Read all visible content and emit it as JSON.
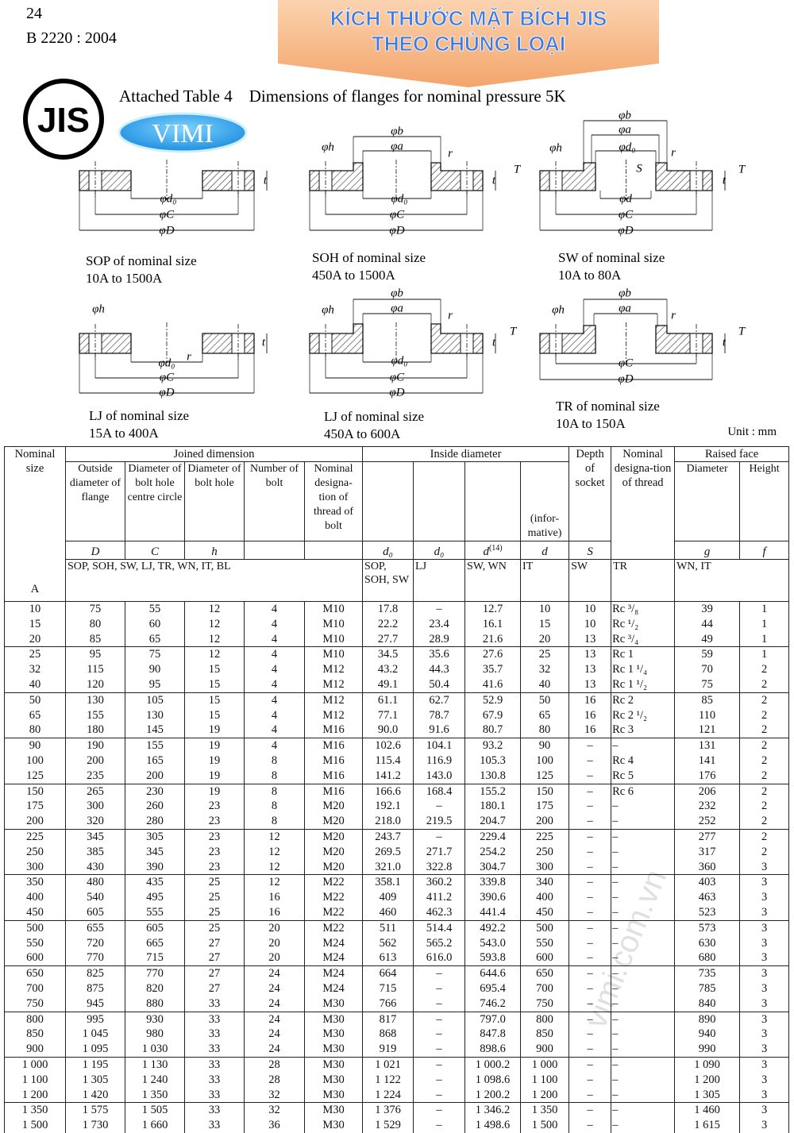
{
  "header": {
    "page_number": "24",
    "standard": "B 2220 : 2004",
    "banner": [
      "KÍCH THƯỚC MẶT BÍCH JIS",
      "THEO CHỦNG LOẠI"
    ],
    "logo": "JIS",
    "brand": "VIMI",
    "caption": "Attached Table 4    Dimensions of flanges for nominal pressure 5K"
  },
  "diagrams": [
    {
      "caption": [
        "SOP of nominal size",
        "10A to 1500A"
      ],
      "labels": [
        "φd₀",
        "φC",
        "φD",
        "t"
      ]
    },
    {
      "caption": [
        "SOH of nominal size",
        "450A to 1500A"
      ],
      "labels": [
        "φb",
        "φa",
        "φh",
        "r",
        "t",
        "T",
        "φd₀",
        "φC",
        "φD"
      ]
    },
    {
      "caption": [
        "SW of nominal size",
        "10A to 80A"
      ],
      "labels": [
        "φb",
        "φa",
        "φd₀",
        "φh",
        "r",
        "S",
        "t",
        "T",
        "φd",
        "φC",
        "φD"
      ]
    },
    {
      "caption": [
        "LJ of nominal size",
        "15A to 400A"
      ],
      "labels": [
        "φh",
        "t",
        "φd₀",
        "r",
        "φC",
        "φD"
      ]
    },
    {
      "caption": [
        "LJ of nominal size",
        "450A to 600A"
      ],
      "labels": [
        "φb",
        "φa",
        "φh",
        "r",
        "t",
        "T",
        "φd₀",
        "φC",
        "φD"
      ]
    },
    {
      "caption": [
        "TR of nominal size",
        "10A to 150A"
      ],
      "labels": [
        "φb",
        "φa",
        "φh",
        "r",
        "t",
        "T",
        "φC",
        "φD"
      ]
    }
  ],
  "unit": "Unit : mm",
  "watermark": "vimi.com.vn",
  "table": {
    "header": {
      "nominal_size": "Nominal size",
      "unit_symbol": "A",
      "joined_dimension": "Joined dimension",
      "inside_diameter": "Inside diameter",
      "depth_of_socket": "Depth of socket",
      "nominal_designation_of_thread": "Nominal designa-tion of thread",
      "raised_face": "Raised face",
      "columns": [
        "Outside diameter of flange",
        "Diameter of bolt hole centre circle",
        "Diameter of bolt hole",
        "Number of bolt",
        "Nominal designa-tion of thread of bolt",
        "(infor-mative)",
        "Diameter",
        "Height"
      ],
      "symbols": [
        "D",
        "C",
        "h",
        "d₀",
        "d₀",
        "d",
        "d",
        "S",
        "g",
        "f"
      ],
      "symbol_note": "(14)",
      "applicability": [
        "SOP, SOH, SW, LJ, TR, WN, IT, BL",
        "SOP, SOH, SW",
        "LJ",
        "SW, WN",
        "IT",
        "SW",
        "TR",
        "WN, IT"
      ]
    },
    "rows": [
      [
        "10",
        "75",
        "55",
        "12",
        "4",
        "M10",
        "17.8",
        "–",
        "12.7",
        "10",
        "10",
        "Rc ³/₈",
        "39",
        "1"
      ],
      [
        "15",
        "80",
        "60",
        "12",
        "4",
        "M10",
        "22.2",
        "23.4",
        "16.1",
        "15",
        "10",
        "Rc ¹/₂",
        "44",
        "1"
      ],
      [
        "20",
        "85",
        "65",
        "12",
        "4",
        "M10",
        "27.7",
        "28.9",
        "21.6",
        "20",
        "13",
        "Rc ³/₄",
        "49",
        "1"
      ],
      [
        "25",
        "95",
        "75",
        "12",
        "4",
        "M10",
        "34.5",
        "35.6",
        "27.6",
        "25",
        "13",
        "Rc 1",
        "59",
        "1"
      ],
      [
        "32",
        "115",
        "90",
        "15",
        "4",
        "M12",
        "43.2",
        "44.3",
        "35.7",
        "32",
        "13",
        "Rc 1 ¹/₄",
        "70",
        "2"
      ],
      [
        "40",
        "120",
        "95",
        "15",
        "4",
        "M12",
        "49.1",
        "50.4",
        "41.6",
        "40",
        "13",
        "Rc 1 ¹/₂",
        "75",
        "2"
      ],
      [
        "50",
        "130",
        "105",
        "15",
        "4",
        "M12",
        "61.1",
        "62.7",
        "52.9",
        "50",
        "16",
        "Rc 2",
        "85",
        "2"
      ],
      [
        "65",
        "155",
        "130",
        "15",
        "4",
        "M12",
        "77.1",
        "78.7",
        "67.9",
        "65",
        "16",
        "Rc 2 ¹/₂",
        "110",
        "2"
      ],
      [
        "80",
        "180",
        "145",
        "19",
        "4",
        "M16",
        "90.0",
        "91.6",
        "80.7",
        "80",
        "16",
        "Rc 3",
        "121",
        "2"
      ],
      [
        "90",
        "190",
        "155",
        "19",
        "4",
        "M16",
        "102.6",
        "104.1",
        "93.2",
        "90",
        "–",
        "–",
        "131",
        "2"
      ],
      [
        "100",
        "200",
        "165",
        "19",
        "8",
        "M16",
        "115.4",
        "116.9",
        "105.3",
        "100",
        "–",
        "Rc 4",
        "141",
        "2"
      ],
      [
        "125",
        "235",
        "200",
        "19",
        "8",
        "M16",
        "141.2",
        "143.0",
        "130.8",
        "125",
        "–",
        "Rc 5",
        "176",
        "2"
      ],
      [
        "150",
        "265",
        "230",
        "19",
        "8",
        "M16",
        "166.6",
        "168.4",
        "155.2",
        "150",
        "–",
        "Rc 6",
        "206",
        "2"
      ],
      [
        "175",
        "300",
        "260",
        "23",
        "8",
        "M20",
        "192.1",
        "–",
        "180.1",
        "175",
        "–",
        "–",
        "232",
        "2"
      ],
      [
        "200",
        "320",
        "280",
        "23",
        "8",
        "M20",
        "218.0",
        "219.5",
        "204.7",
        "200",
        "–",
        "–",
        "252",
        "2"
      ],
      [
        "225",
        "345",
        "305",
        "23",
        "12",
        "M20",
        "243.7",
        "–",
        "229.4",
        "225",
        "–",
        "–",
        "277",
        "2"
      ],
      [
        "250",
        "385",
        "345",
        "23",
        "12",
        "M20",
        "269.5",
        "271.7",
        "254.2",
        "250",
        "–",
        "–",
        "317",
        "2"
      ],
      [
        "300",
        "430",
        "390",
        "23",
        "12",
        "M20",
        "321.0",
        "322.8",
        "304.7",
        "300",
        "–",
        "–",
        "360",
        "3"
      ],
      [
        "350",
        "480",
        "435",
        "25",
        "12",
        "M22",
        "358.1",
        "360.2",
        "339.8",
        "340",
        "–",
        "–",
        "403",
        "3"
      ],
      [
        "400",
        "540",
        "495",
        "25",
        "16",
        "M22",
        "409",
        "411.2",
        "390.6",
        "400",
        "–",
        "–",
        "463",
        "3"
      ],
      [
        "450",
        "605",
        "555",
        "25",
        "16",
        "M22",
        "460",
        "462.3",
        "441.4",
        "450",
        "–",
        "–",
        "523",
        "3"
      ],
      [
        "500",
        "655",
        "605",
        "25",
        "20",
        "M22",
        "511",
        "514.4",
        "492.2",
        "500",
        "–",
        "–",
        "573",
        "3"
      ],
      [
        "550",
        "720",
        "665",
        "27",
        "20",
        "M24",
        "562",
        "565.2",
        "543.0",
        "550",
        "–",
        "–",
        "630",
        "3"
      ],
      [
        "600",
        "770",
        "715",
        "27",
        "20",
        "M24",
        "613",
        "616.0",
        "593.8",
        "600",
        "–",
        "–",
        "680",
        "3"
      ],
      [
        "650",
        "825",
        "770",
        "27",
        "24",
        "M24",
        "664",
        "–",
        "644.6",
        "650",
        "–",
        "–",
        "735",
        "3"
      ],
      [
        "700",
        "875",
        "820",
        "27",
        "24",
        "M24",
        "715",
        "–",
        "695.4",
        "700",
        "–",
        "–",
        "785",
        "3"
      ],
      [
        "750",
        "945",
        "880",
        "33",
        "24",
        "M30",
        "766",
        "–",
        "746.2",
        "750",
        "–",
        "–",
        "840",
        "3"
      ],
      [
        "800",
        "995",
        "930",
        "33",
        "24",
        "M30",
        "817",
        "–",
        "797.0",
        "800",
        "–",
        "–",
        "890",
        "3"
      ],
      [
        "850",
        "1 045",
        "980",
        "33",
        "24",
        "M30",
        "868",
        "–",
        "847.8",
        "850",
        "–",
        "–",
        "940",
        "3"
      ],
      [
        "900",
        "1 095",
        "1 030",
        "33",
        "24",
        "M30",
        "919",
        "–",
        "898.6",
        "900",
        "–",
        "–",
        "990",
        "3"
      ],
      [
        "1 000",
        "1 195",
        "1 130",
        "33",
        "28",
        "M30",
        "1 021",
        "–",
        "1 000.2",
        "1 000",
        "–",
        "–",
        "1 090",
        "3"
      ],
      [
        "1 100",
        "1 305",
        "1 240",
        "33",
        "28",
        "M30",
        "1 122",
        "–",
        "1 098.6",
        "1 100",
        "–",
        "–",
        "1 200",
        "3"
      ],
      [
        "1 200",
        "1 420",
        "1 350",
        "33",
        "32",
        "M30",
        "1 224",
        "–",
        "1 200.2",
        "1 200",
        "–",
        "–",
        "1 305",
        "3"
      ],
      [
        "1 350",
        "1 575",
        "1 505",
        "33",
        "32",
        "M30",
        "1 376",
        "–",
        "1 346.2",
        "1 350",
        "–",
        "–",
        "1 460",
        "3"
      ],
      [
        "1 500",
        "1 730",
        "1 660",
        "33",
        "36",
        "M30",
        "1 529",
        "–",
        "1 498.6",
        "1 500",
        "–",
        "–",
        "1 615",
        "3"
      ]
    ]
  }
}
